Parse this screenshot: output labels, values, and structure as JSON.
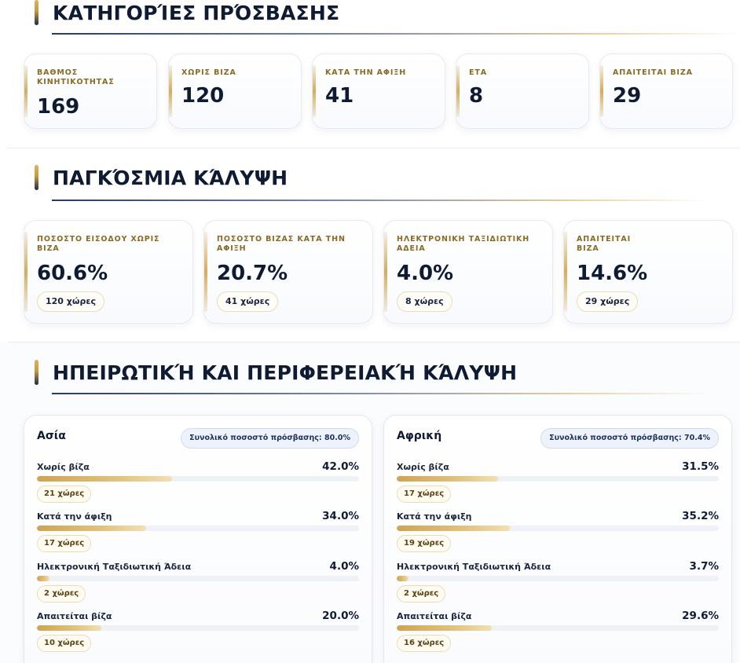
{
  "sections": {
    "access": {
      "title": "ΚΑΤΗΓΟΡΊΕΣ ΠΡΌΣΒΑΣΗΣ"
    },
    "global": {
      "title": "ΠΑΓΚΌΣΜΙΑ ΚΆΛΥΨΗ"
    },
    "regional": {
      "title": "ΗΠΕΙΡΩΤΙΚΉ ΚΑΙ ΠΕΡΙΦΕΡΕΙΑΚΉ ΚΆΛΥΨΗ"
    }
  },
  "access_stats": [
    {
      "label": "ΒΑΘΜΟΣ ΚΙΝΗΤΙΚΟΤΗΤΑΣ",
      "value": "169"
    },
    {
      "label": "ΧΩΡΙΣ ΒΙΖΑ",
      "value": "120"
    },
    {
      "label": "ΚΑΤΑ ΤΗΝ ΑΦΙΞΗ",
      "value": "41"
    },
    {
      "label": "ΕΤΑ",
      "value": "8"
    },
    {
      "label": "ΑΠΑΙΤΕΙΤΑΙ ΒΙΖΑ",
      "value": "29"
    }
  ],
  "global_stats": [
    {
      "label": "ΠΟΣΟΣΤΟ ΕΙΣΟΔΟΥ ΧΩΡΙΣ ΒΙΖΑ",
      "value": "60.6%",
      "count": "120 χώρες"
    },
    {
      "label": "ΠΟΣΟΣΤΟ ΒΙΖΑΣ ΚΑΤΑ ΤΗΝ ΑΦΙΞΗ",
      "value": "20.7%",
      "count": "41 χώρες"
    },
    {
      "label": "ΗΛΕΚΤΡΟΝΙΚΗ ΤΑΞΙΔΙΩΤΙΚΗ ΑΔΕΙΑ",
      "value": "4.0%",
      "count": "8 χώρες"
    },
    {
      "label": "ΑΠΑΙΤΕΙΤΑΙ ΒΙΖΑ",
      "value": "14.6%",
      "count": "29 χώρες"
    }
  ],
  "regions": [
    {
      "name": "Ασία",
      "total": "Συνολικό ποσοστό πρόσβασης: 80.0%",
      "rows": [
        {
          "label": "Χωρίς βίζα",
          "pct": "42.0%",
          "fraction": 0.42,
          "count": "21 χώρες"
        },
        {
          "label": "Κατά την άφιξη",
          "pct": "34.0%",
          "fraction": 0.34,
          "count": "17 χώρες"
        },
        {
          "label": "Ηλεκτρονική Ταξιδιωτική Άδεια",
          "pct": "4.0%",
          "fraction": 0.04,
          "count": "2 χώρες"
        },
        {
          "label": "Απαιτείται βίζα",
          "pct": "20.0%",
          "fraction": 0.2,
          "count": "10 χώρες"
        }
      ]
    },
    {
      "name": "Αφρική",
      "total": "Συνολικό ποσοστό πρόσβασης: 70.4%",
      "rows": [
        {
          "label": "Χωρίς βίζα",
          "pct": "31.5%",
          "fraction": 0.315,
          "count": "17 χώρες"
        },
        {
          "label": "Κατά την άφιξη",
          "pct": "35.2%",
          "fraction": 0.352,
          "count": "19 χώρες"
        },
        {
          "label": "Ηλεκτρονική Ταξιδιωτική Άδεια",
          "pct": "3.7%",
          "fraction": 0.037,
          "count": "2 χώρες"
        },
        {
          "label": "Απαιτείται βίζα",
          "pct": "29.6%",
          "fraction": 0.296,
          "count": "16 χώρες"
        }
      ]
    }
  ],
  "colors": {
    "accent_gold": "#d4ad5c",
    "navy": "#0f1b33",
    "label_gold": "#8a6a24"
  }
}
